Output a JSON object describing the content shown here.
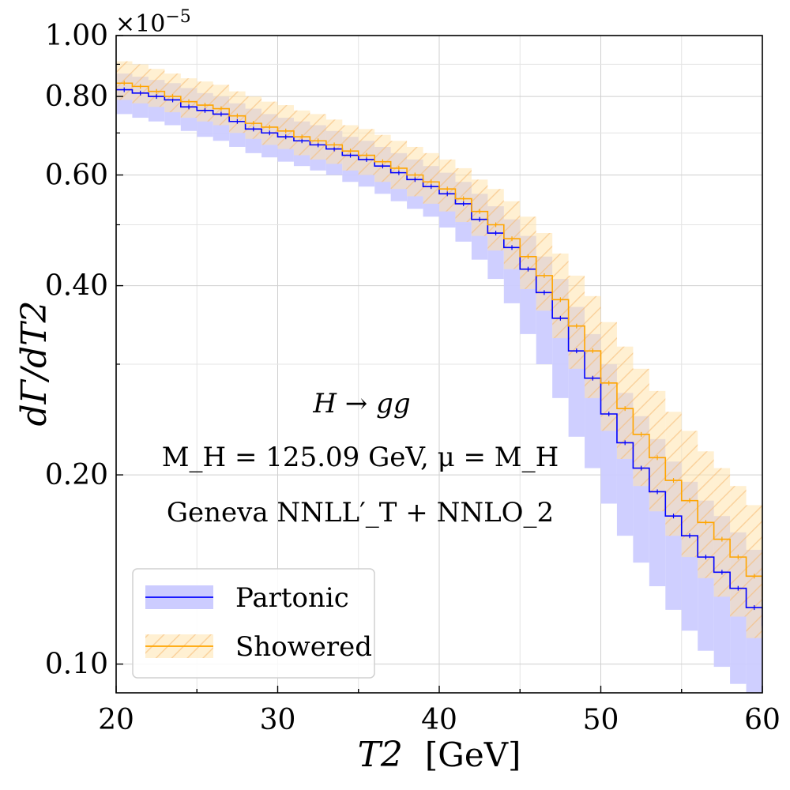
{
  "chart_data": {
    "type": "line",
    "title": "",
    "xlabel": "T2",
    "xlabel_unit": "[GeV]",
    "ylabel": "dΓ/dT2",
    "y_multiplier": "×10",
    "y_multiplier_exp": "−5",
    "xscale": "linear",
    "yscale": "log",
    "xlim": [
      20,
      60
    ],
    "ylim": [
      0.09,
      1.0
    ],
    "x_ticks": [
      20,
      30,
      40,
      50,
      60
    ],
    "x_tick_labels": [
      "20",
      "30",
      "40",
      "50",
      "60"
    ],
    "y_ticks": [
      0.1,
      0.2,
      0.4,
      0.6,
      0.8,
      1.0
    ],
    "y_tick_labels": [
      "0.10",
      "0.20",
      "0.40",
      "0.60",
      "0.80",
      "1.00"
    ],
    "grid": true,
    "legend_position": "bottom-left",
    "annotations": [
      "H → gg",
      "M_H = 125.09 GeV,  μ = M_H",
      "Geneva   NNLL′_T + NNLO_2"
    ],
    "bin_edges": [
      20,
      21,
      22,
      23,
      24,
      25,
      26,
      27,
      28,
      29,
      30,
      31,
      32,
      33,
      34,
      35,
      36,
      37,
      38,
      39,
      40,
      41,
      42,
      43,
      44,
      45,
      46,
      47,
      48,
      49,
      50,
      51,
      52,
      53,
      54,
      55,
      56,
      57,
      58,
      59,
      60
    ],
    "series": [
      {
        "name": "Partonic",
        "color": "#0000ff",
        "band_color": "#ccccff",
        "values": [
          0.82,
          0.81,
          0.8,
          0.79,
          0.77,
          0.76,
          0.75,
          0.73,
          0.71,
          0.7,
          0.69,
          0.68,
          0.67,
          0.66,
          0.645,
          0.635,
          0.62,
          0.605,
          0.59,
          0.575,
          0.56,
          0.54,
          0.51,
          0.485,
          0.46,
          0.425,
          0.39,
          0.355,
          0.315,
          0.285,
          0.25,
          0.225,
          0.205,
          0.188,
          0.172,
          0.16,
          0.148,
          0.14,
          0.132,
          0.123,
          0.115
        ],
        "band_low": [
          0.75,
          0.74,
          0.73,
          0.72,
          0.705,
          0.69,
          0.68,
          0.665,
          0.65,
          0.64,
          0.63,
          0.62,
          0.61,
          0.6,
          0.585,
          0.575,
          0.56,
          0.545,
          0.53,
          0.515,
          0.495,
          0.47,
          0.44,
          0.41,
          0.375,
          0.335,
          0.3,
          0.265,
          0.23,
          0.205,
          0.18,
          0.16,
          0.145,
          0.133,
          0.122,
          0.113,
          0.105,
          0.099,
          0.093,
          0.087,
          0.082
        ],
        "band_high": [
          0.87,
          0.86,
          0.85,
          0.84,
          0.825,
          0.81,
          0.8,
          0.78,
          0.765,
          0.75,
          0.74,
          0.73,
          0.72,
          0.705,
          0.69,
          0.68,
          0.665,
          0.65,
          0.635,
          0.62,
          0.605,
          0.585,
          0.56,
          0.535,
          0.51,
          0.48,
          0.445,
          0.41,
          0.37,
          0.335,
          0.3,
          0.27,
          0.248,
          0.228,
          0.21,
          0.195,
          0.182,
          0.172,
          0.162,
          0.152,
          0.142
        ]
      },
      {
        "name": "Showered",
        "color": "#ffa500",
        "band_color": "#ffe0a0",
        "values": [
          0.84,
          0.83,
          0.815,
          0.8,
          0.785,
          0.775,
          0.765,
          0.745,
          0.725,
          0.715,
          0.705,
          0.69,
          0.68,
          0.67,
          0.655,
          0.645,
          0.63,
          0.615,
          0.6,
          0.585,
          0.57,
          0.55,
          0.525,
          0.5,
          0.475,
          0.445,
          0.415,
          0.38,
          0.345,
          0.315,
          0.28,
          0.255,
          0.232,
          0.213,
          0.196,
          0.182,
          0.168,
          0.158,
          0.148,
          0.138,
          0.128
        ],
        "band_low": [
          0.79,
          0.78,
          0.77,
          0.755,
          0.74,
          0.73,
          0.72,
          0.7,
          0.685,
          0.67,
          0.66,
          0.645,
          0.635,
          0.625,
          0.61,
          0.6,
          0.585,
          0.57,
          0.555,
          0.54,
          0.525,
          0.505,
          0.48,
          0.455,
          0.425,
          0.395,
          0.365,
          0.33,
          0.295,
          0.265,
          0.235,
          0.212,
          0.192,
          0.175,
          0.16,
          0.148,
          0.137,
          0.128,
          0.119,
          0.11,
          0.102
        ],
        "band_high": [
          0.91,
          0.9,
          0.885,
          0.87,
          0.855,
          0.845,
          0.835,
          0.815,
          0.8,
          0.785,
          0.775,
          0.76,
          0.75,
          0.735,
          0.72,
          0.71,
          0.695,
          0.68,
          0.665,
          0.65,
          0.635,
          0.615,
          0.59,
          0.57,
          0.545,
          0.515,
          0.485,
          0.45,
          0.415,
          0.385,
          0.35,
          0.32,
          0.295,
          0.272,
          0.252,
          0.235,
          0.218,
          0.205,
          0.192,
          0.179,
          0.166
        ]
      }
    ]
  }
}
